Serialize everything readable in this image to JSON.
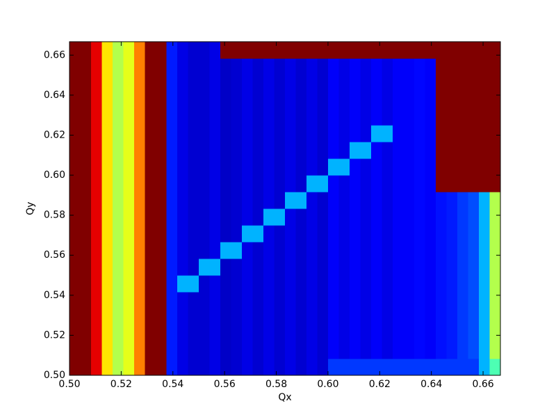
{
  "chart_data": {
    "type": "heatmap",
    "colormap": "jet",
    "xlabel": "Qx",
    "ylabel": "Qy",
    "xlim": [
      0.5,
      0.6667
    ],
    "ylim": [
      0.5,
      0.6667
    ],
    "xticks": [
      {
        "value": 0.5,
        "label": "0.50"
      },
      0.52,
      0.54,
      0.56,
      0.58,
      {
        "value": 0.6,
        "label": "0.60"
      },
      0.62,
      0.64,
      0.66
    ],
    "yticks": [
      {
        "value": 0.5,
        "label": "0.50"
      },
      0.52,
      0.54,
      0.56,
      0.58,
      {
        "value": 0.6,
        "label": "0.60"
      },
      0.62,
      0.64,
      0.66
    ],
    "zlim": [
      0,
      1
    ],
    "z": [
      [
        1,
        1,
        0.9,
        0.65,
        0.55,
        0.6,
        0.75,
        1,
        1,
        0.15,
        0.1,
        0.08,
        0.08,
        0.1,
        0.07,
        0.08,
        0.1,
        0.08,
        0.1,
        0.08,
        0.1,
        0.08,
        0.1,
        0.08,
        0.18,
        0.18,
        0.18,
        0.18,
        0.18,
        0.18,
        0.18,
        0.18,
        0.18,
        0.18,
        0.18,
        0.18,
        0.18,
        0.18,
        0.3,
        0.45
      ],
      [
        1,
        1,
        0.9,
        0.65,
        0.55,
        0.6,
        0.75,
        1,
        1,
        0.15,
        0.1,
        0.08,
        0.08,
        0.1,
        0.07,
        0.08,
        0.1,
        0.08,
        0.1,
        0.08,
        0.1,
        0.08,
        0.1,
        0.08,
        0.12,
        0.1,
        0.12,
        0.1,
        0.12,
        0.1,
        0.12,
        0.12,
        0.13,
        0.12,
        0.14,
        0.15,
        0.18,
        0.2,
        0.3,
        0.55
      ],
      [
        1,
        1,
        0.9,
        0.65,
        0.55,
        0.6,
        0.75,
        1,
        1,
        0.15,
        0.1,
        0.08,
        0.08,
        0.1,
        0.07,
        0.08,
        0.1,
        0.08,
        0.1,
        0.08,
        0.1,
        0.08,
        0.1,
        0.08,
        0.12,
        0.1,
        0.12,
        0.1,
        0.12,
        0.1,
        0.12,
        0.12,
        0.13,
        0.12,
        0.14,
        0.15,
        0.18,
        0.2,
        0.3,
        0.55
      ],
      [
        1,
        1,
        0.9,
        0.65,
        0.55,
        0.6,
        0.75,
        1,
        1,
        0.15,
        0.1,
        0.08,
        0.08,
        0.1,
        0.07,
        0.08,
        0.1,
        0.08,
        0.1,
        0.08,
        0.1,
        0.08,
        0.1,
        0.08,
        0.12,
        0.1,
        0.12,
        0.1,
        0.12,
        0.1,
        0.12,
        0.12,
        0.13,
        0.12,
        0.14,
        0.15,
        0.18,
        0.2,
        0.3,
        0.55
      ],
      [
        1,
        1,
        0.9,
        0.65,
        0.55,
        0.6,
        0.75,
        1,
        1,
        0.15,
        0.1,
        0.08,
        0.08,
        0.1,
        0.07,
        0.08,
        0.1,
        0.08,
        0.1,
        0.08,
        0.1,
        0.08,
        0.1,
        0.08,
        0.12,
        0.1,
        0.12,
        0.1,
        0.12,
        0.1,
        0.12,
        0.12,
        0.13,
        0.12,
        0.14,
        0.15,
        0.18,
        0.2,
        0.3,
        0.55
      ],
      [
        1,
        1,
        0.9,
        0.65,
        0.55,
        0.6,
        0.75,
        1,
        1,
        0.15,
        0.3,
        0.3,
        0.08,
        0.1,
        0.07,
        0.08,
        0.1,
        0.08,
        0.1,
        0.08,
        0.1,
        0.08,
        0.1,
        0.08,
        0.12,
        0.1,
        0.12,
        0.1,
        0.12,
        0.1,
        0.12,
        0.12,
        0.13,
        0.12,
        0.14,
        0.15,
        0.18,
        0.2,
        0.3,
        0.55
      ],
      [
        1,
        1,
        0.9,
        0.65,
        0.55,
        0.6,
        0.75,
        1,
        1,
        0.15,
        0.1,
        0.08,
        0.3,
        0.3,
        0.07,
        0.08,
        0.1,
        0.08,
        0.1,
        0.08,
        0.1,
        0.08,
        0.1,
        0.08,
        0.12,
        0.1,
        0.12,
        0.1,
        0.12,
        0.1,
        0.12,
        0.12,
        0.13,
        0.12,
        0.14,
        0.15,
        0.18,
        0.2,
        0.3,
        0.55
      ],
      [
        1,
        1,
        0.9,
        0.65,
        0.55,
        0.6,
        0.75,
        1,
        1,
        0.15,
        0.1,
        0.08,
        0.08,
        0.1,
        0.3,
        0.3,
        0.1,
        0.08,
        0.1,
        0.08,
        0.1,
        0.08,
        0.1,
        0.08,
        0.12,
        0.1,
        0.12,
        0.1,
        0.12,
        0.1,
        0.12,
        0.12,
        0.13,
        0.12,
        0.14,
        0.15,
        0.18,
        0.2,
        0.3,
        0.55
      ],
      [
        1,
        1,
        0.9,
        0.65,
        0.55,
        0.6,
        0.75,
        1,
        1,
        0.15,
        0.1,
        0.08,
        0.08,
        0.1,
        0.07,
        0.08,
        0.3,
        0.3,
        0.1,
        0.08,
        0.1,
        0.08,
        0.1,
        0.08,
        0.12,
        0.1,
        0.12,
        0.1,
        0.12,
        0.1,
        0.12,
        0.12,
        0.13,
        0.12,
        0.14,
        0.15,
        0.18,
        0.2,
        0.3,
        0.55
      ],
      [
        1,
        1,
        0.9,
        0.65,
        0.55,
        0.6,
        0.75,
        1,
        1,
        0.15,
        0.1,
        0.08,
        0.08,
        0.1,
        0.07,
        0.08,
        0.1,
        0.08,
        0.3,
        0.3,
        0.1,
        0.08,
        0.1,
        0.08,
        0.12,
        0.1,
        0.12,
        0.1,
        0.12,
        0.1,
        0.12,
        0.12,
        0.13,
        0.12,
        0.14,
        0.15,
        0.18,
        0.2,
        0.3,
        0.55
      ],
      [
        1,
        1,
        0.9,
        0.65,
        0.55,
        0.6,
        0.75,
        1,
        1,
        0.15,
        0.1,
        0.08,
        0.08,
        0.1,
        0.07,
        0.08,
        0.1,
        0.08,
        0.1,
        0.08,
        0.3,
        0.3,
        0.1,
        0.08,
        0.12,
        0.1,
        0.12,
        0.1,
        0.12,
        0.1,
        0.12,
        0.12,
        0.13,
        0.12,
        0.14,
        0.15,
        0.18,
        0.2,
        0.3,
        0.55
      ],
      [
        1,
        1,
        0.9,
        0.65,
        0.55,
        0.6,
        0.75,
        1,
        1,
        0.15,
        0.1,
        0.08,
        0.08,
        0.1,
        0.07,
        0.08,
        0.1,
        0.08,
        0.1,
        0.08,
        0.1,
        0.08,
        0.3,
        0.3,
        0.12,
        0.1,
        0.12,
        0.1,
        0.12,
        0.1,
        0.12,
        0.12,
        0.13,
        0.12,
        1,
        1,
        1,
        1,
        1,
        1
      ],
      [
        1,
        1,
        0.9,
        0.65,
        0.55,
        0.6,
        0.75,
        1,
        1,
        0.15,
        0.1,
        0.08,
        0.08,
        0.1,
        0.07,
        0.08,
        0.1,
        0.08,
        0.1,
        0.08,
        0.1,
        0.08,
        0.1,
        0.08,
        0.3,
        0.3,
        0.12,
        0.1,
        0.12,
        0.1,
        0.12,
        0.12,
        0.13,
        0.12,
        1,
        1,
        1,
        1,
        1,
        1
      ],
      [
        1,
        1,
        0.9,
        0.65,
        0.55,
        0.6,
        0.75,
        1,
        1,
        0.15,
        0.1,
        0.08,
        0.08,
        0.1,
        0.07,
        0.08,
        0.1,
        0.08,
        0.1,
        0.08,
        0.1,
        0.08,
        0.1,
        0.08,
        0.12,
        0.1,
        0.3,
        0.3,
        0.12,
        0.1,
        0.12,
        0.12,
        0.13,
        0.12,
        1,
        1,
        1,
        1,
        1,
        1
      ],
      [
        1,
        1,
        0.9,
        0.65,
        0.55,
        0.6,
        0.75,
        1,
        1,
        0.15,
        0.1,
        0.08,
        0.08,
        0.1,
        0.07,
        0.08,
        0.1,
        0.08,
        0.1,
        0.08,
        0.1,
        0.08,
        0.1,
        0.08,
        0.12,
        0.1,
        0.12,
        0.1,
        0.3,
        0.3,
        0.12,
        0.12,
        0.13,
        0.12,
        1,
        1,
        1,
        1,
        1,
        1
      ],
      [
        1,
        1,
        0.9,
        0.65,
        0.55,
        0.6,
        0.75,
        1,
        1,
        0.15,
        0.1,
        0.08,
        0.08,
        0.1,
        0.07,
        0.08,
        0.1,
        0.08,
        0.1,
        0.08,
        0.1,
        0.08,
        0.1,
        0.08,
        0.12,
        0.1,
        0.12,
        0.1,
        0.12,
        0.1,
        0.12,
        0.12,
        0.13,
        0.12,
        1,
        1,
        1,
        1,
        1,
        1
      ],
      [
        1,
        1,
        0.9,
        0.65,
        0.55,
        0.6,
        0.75,
        1,
        1,
        0.15,
        0.1,
        0.08,
        0.08,
        0.1,
        0.07,
        0.08,
        0.1,
        0.08,
        0.1,
        0.08,
        0.1,
        0.08,
        0.1,
        0.08,
        0.12,
        0.1,
        0.12,
        0.1,
        0.12,
        0.1,
        0.12,
        0.12,
        0.13,
        0.12,
        1,
        1,
        1,
        1,
        1,
        1
      ],
      [
        1,
        1,
        0.9,
        0.65,
        0.55,
        0.6,
        0.75,
        1,
        1,
        0.15,
        0.1,
        0.08,
        0.08,
        0.1,
        0.07,
        0.08,
        0.1,
        0.08,
        0.1,
        0.08,
        0.1,
        0.08,
        0.1,
        0.08,
        0.12,
        0.1,
        0.12,
        0.1,
        0.12,
        0.1,
        0.12,
        0.12,
        0.13,
        0.12,
        1,
        1,
        1,
        1,
        1,
        1
      ],
      [
        1,
        1,
        0.9,
        0.65,
        0.55,
        0.6,
        0.75,
        1,
        1,
        0.15,
        0.1,
        0.08,
        0.08,
        0.1,
        0.07,
        0.08,
        0.1,
        0.08,
        0.1,
        0.08,
        0.1,
        0.08,
        0.1,
        0.08,
        0.12,
        0.1,
        0.12,
        0.1,
        0.12,
        0.1,
        0.12,
        0.12,
        0.13,
        0.12,
        1,
        1,
        1,
        1,
        1,
        1
      ],
      [
        1,
        1,
        0.9,
        0.65,
        0.55,
        0.6,
        0.75,
        1,
        1,
        0.15,
        0.1,
        0.08,
        0.08,
        0.1,
        1,
        1,
        1,
        1,
        1,
        1,
        1,
        1,
        1,
        1,
        1,
        1,
        1,
        1,
        1,
        1,
        1,
        1,
        1,
        1,
        1,
        1,
        1,
        1,
        1,
        1
      ]
    ]
  }
}
